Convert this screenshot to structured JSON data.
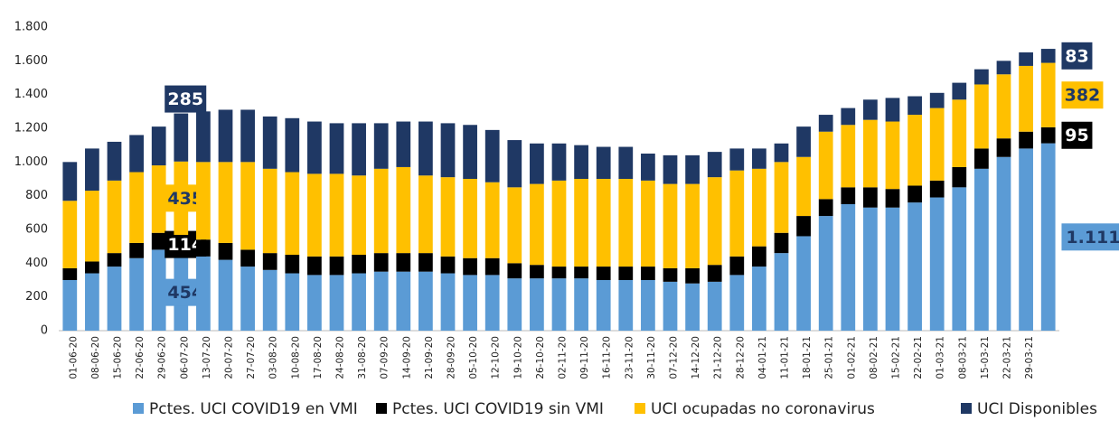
{
  "chart_data": {
    "type": "stacked_bar",
    "categories": [
      "01-06-20",
      "08-06-20",
      "15-06-20",
      "22-06-20",
      "29-06-20",
      "06-07-20",
      "13-07-20",
      "20-07-20",
      "27-07-20",
      "03-08-20",
      "10-08-20",
      "17-08-20",
      "24-08-20",
      "31-08-20",
      "07-09-20",
      "14-09-20",
      "21-09-20",
      "28-09-20",
      "05-10-20",
      "12-10-20",
      "19-10-20",
      "26-10-20",
      "02-11-20",
      "09-11-20",
      "16-11-20",
      "23-11-20",
      "30-11-20",
      "07-12-20",
      "14-12-20",
      "21-12-20",
      "28-12-20",
      "04-01-21",
      "11-01-21",
      "18-01-21",
      "25-01-21",
      "01-02-21",
      "08-02-21",
      "15-02-21",
      "22-02-21",
      "01-03-21",
      "08-03-21",
      "15-03-21",
      "22-03-21",
      "29-03-21",
      null
    ],
    "series": [
      {
        "name": "Pctes. UCI COVID19 en VMI",
        "color": "#5b9bd5",
        "values": [
          300,
          340,
          380,
          430,
          480,
          454,
          440,
          420,
          380,
          360,
          340,
          330,
          330,
          340,
          350,
          350,
          350,
          340,
          330,
          330,
          310,
          310,
          310,
          310,
          300,
          300,
          300,
          290,
          280,
          290,
          330,
          380,
          460,
          560,
          680,
          750,
          730,
          730,
          760,
          790,
          850,
          960,
          1030,
          1080,
          1111
        ],
        "value_labels": [
          null,
          null,
          null,
          null,
          null,
          "454",
          null,
          null,
          null,
          null,
          null,
          null,
          null,
          null,
          null,
          null,
          null,
          null,
          null,
          null,
          null,
          null,
          null,
          null,
          null,
          null,
          null,
          null,
          null,
          null,
          null,
          null,
          null,
          null,
          null,
          null,
          null,
          null,
          null,
          null,
          null,
          null,
          null,
          null,
          "1.111"
        ]
      },
      {
        "name": "Pctes. UCI COVID19 sin VMI",
        "color": "#000000",
        "values": [
          70,
          70,
          80,
          90,
          100,
          114,
          100,
          100,
          100,
          100,
          110,
          110,
          110,
          110,
          110,
          110,
          110,
          100,
          100,
          100,
          90,
          80,
          70,
          70,
          80,
          80,
          80,
          80,
          90,
          100,
          110,
          120,
          120,
          120,
          100,
          100,
          120,
          110,
          100,
          100,
          120,
          120,
          110,
          100,
          95
        ],
        "value_labels": [
          null,
          null,
          null,
          null,
          null,
          "114",
          null,
          null,
          null,
          null,
          null,
          null,
          null,
          null,
          null,
          null,
          null,
          null,
          null,
          null,
          null,
          null,
          null,
          null,
          null,
          null,
          null,
          null,
          null,
          null,
          null,
          null,
          null,
          null,
          null,
          null,
          null,
          null,
          null,
          null,
          null,
          null,
          null,
          null,
          "95"
        ]
      },
      {
        "name": "UCI ocupadas no coronavirus",
        "color": "#ffc000",
        "values": [
          400,
          420,
          430,
          420,
          400,
          435,
          460,
          480,
          520,
          500,
          490,
          490,
          490,
          470,
          500,
          510,
          460,
          470,
          470,
          450,
          450,
          480,
          510,
          520,
          520,
          520,
          510,
          500,
          500,
          520,
          510,
          460,
          420,
          350,
          400,
          370,
          400,
          400,
          420,
          430,
          400,
          380,
          380,
          390,
          382
        ],
        "value_labels": [
          null,
          null,
          null,
          null,
          null,
          "435",
          null,
          null,
          null,
          null,
          null,
          null,
          null,
          null,
          null,
          null,
          null,
          null,
          null,
          null,
          null,
          null,
          null,
          null,
          null,
          null,
          null,
          null,
          null,
          null,
          null,
          null,
          null,
          null,
          null,
          null,
          null,
          null,
          null,
          null,
          null,
          null,
          null,
          null,
          "382"
        ]
      },
      {
        "name": "UCI Disponibles",
        "color": "#1f3864",
        "values": [
          230,
          250,
          230,
          220,
          230,
          285,
          300,
          310,
          310,
          310,
          320,
          310,
          300,
          310,
          270,
          270,
          320,
          320,
          320,
          310,
          280,
          240,
          220,
          200,
          190,
          190,
          160,
          170,
          170,
          150,
          130,
          120,
          110,
          180,
          100,
          100,
          120,
          140,
          110,
          90,
          100,
          90,
          80,
          80,
          83
        ],
        "value_labels": [
          null,
          null,
          null,
          null,
          null,
          "285",
          null,
          null,
          null,
          null,
          null,
          null,
          null,
          null,
          null,
          null,
          null,
          null,
          null,
          null,
          null,
          null,
          null,
          null,
          null,
          null,
          null,
          null,
          null,
          null,
          null,
          null,
          null,
          null,
          null,
          null,
          null,
          null,
          null,
          null,
          null,
          null,
          null,
          null,
          "83"
        ]
      }
    ],
    "ylim": [
      0,
      1800
    ],
    "yticks": [
      0,
      {
        "value": 200,
        "label": "200"
      },
      400,
      600,
      800,
      {
        "value": 1000,
        "label": "1.000"
      },
      {
        "value": 1200,
        "label": "1.200"
      },
      {
        "value": 1400,
        "label": "1.400"
      },
      {
        "value": 1600,
        "label": "1.600"
      },
      {
        "value": 1800,
        "label": "1.800"
      }
    ],
    "legend": "bottom"
  }
}
